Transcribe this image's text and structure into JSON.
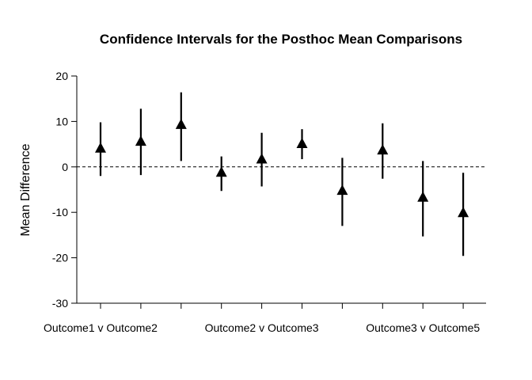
{
  "chart_data": {
    "type": "scatter",
    "title": "Confidence Intervals for the Posthoc Mean Comparisons",
    "xlabel": "",
    "ylabel": "Mean Difference",
    "ylim": [
      -30,
      20
    ],
    "yticks": [
      -30,
      -20,
      -10,
      0,
      10,
      20
    ],
    "reference_line": 0,
    "marker": "triangle",
    "x_tick_labels": [
      {
        "index": 1,
        "label": "Outcome1 v Outcome2"
      },
      {
        "index": 5,
        "label": "Outcome2 v Outcome3"
      },
      {
        "index": 9,
        "label": "Outcome3 v Outcome5"
      }
    ],
    "points": [
      {
        "index": 1,
        "estimate": 4.0,
        "lower": -2.0,
        "upper": 9.8
      },
      {
        "index": 2,
        "estimate": 5.5,
        "lower": -1.8,
        "upper": 12.8
      },
      {
        "index": 3,
        "estimate": 9.2,
        "lower": 1.3,
        "upper": 16.4
      },
      {
        "index": 4,
        "estimate": -1.3,
        "lower": -5.3,
        "upper": 2.3
      },
      {
        "index": 5,
        "estimate": 1.6,
        "lower": -4.3,
        "upper": 7.5
      },
      {
        "index": 6,
        "estimate": 5.0,
        "lower": 1.7,
        "upper": 8.3
      },
      {
        "index": 7,
        "estimate": -5.3,
        "lower": -13.0,
        "upper": 2.0
      },
      {
        "index": 8,
        "estimate": 3.6,
        "lower": -2.6,
        "upper": 9.6
      },
      {
        "index": 9,
        "estimate": -6.8,
        "lower": -15.3,
        "upper": 1.3
      },
      {
        "index": 10,
        "estimate": -10.2,
        "lower": -19.6,
        "upper": -1.3
      }
    ]
  }
}
